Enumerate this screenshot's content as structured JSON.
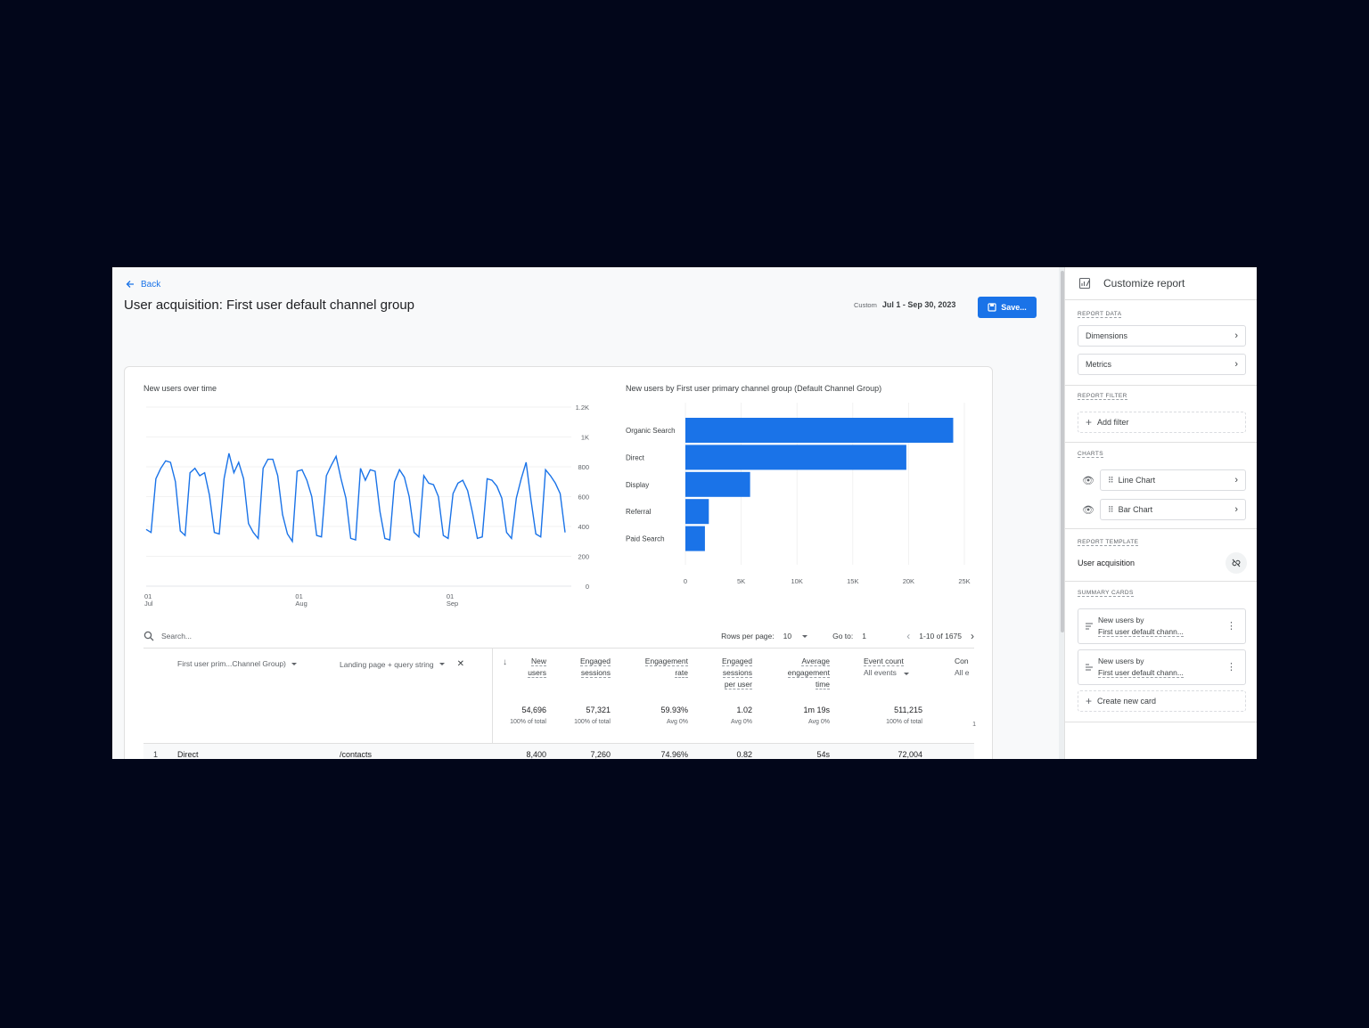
{
  "header": {
    "back_label": "Back",
    "title": "User acquisition: First user default channel group",
    "date_prefix": "Custom",
    "date_range": "Jul 1 - Sep 30, 2023",
    "save_label": "Save..."
  },
  "line_chart": {
    "title": "New users over time",
    "y_ticks": [
      "0",
      "200",
      "400",
      "600",
      "800",
      "1K",
      "1.2K"
    ],
    "x_ticks": [
      {
        "day": "01",
        "month": "Jul"
      },
      {
        "day": "01",
        "month": "Aug"
      },
      {
        "day": "01",
        "month": "Sep"
      }
    ]
  },
  "bar_chart": {
    "title": "New users by First user primary channel group (Default Channel Group)",
    "x_ticks": [
      "0",
      "5K",
      "10K",
      "15K",
      "20K",
      "25K"
    ]
  },
  "chart_data": [
    {
      "type": "line",
      "title": "New users over time",
      "x_start": "2023-07-01",
      "x_end": "2023-09-30",
      "ylim": [
        0,
        1200
      ],
      "y": [
        380,
        360,
        720,
        790,
        840,
        830,
        700,
        370,
        340,
        760,
        790,
        740,
        760,
        610,
        360,
        350,
        720,
        890,
        760,
        830,
        720,
        420,
        360,
        320,
        790,
        850,
        850,
        740,
        480,
        350,
        300,
        770,
        780,
        710,
        600,
        340,
        330,
        740,
        810,
        870,
        720,
        590,
        320,
        310,
        790,
        710,
        780,
        770,
        500,
        320,
        310,
        700,
        780,
        730,
        600,
        360,
        330,
        740,
        690,
        680,
        600,
        340,
        320,
        620,
        690,
        710,
        640,
        490,
        320,
        330,
        720,
        710,
        670,
        590,
        360,
        320,
        590,
        720,
        830,
        580,
        350,
        330,
        780,
        740,
        690,
        620,
        360
      ]
    },
    {
      "type": "bar",
      "title": "New users by First user primary channel group (Default Channel Group)",
      "categories": [
        "Organic Search",
        "Direct",
        "Display",
        "Referral",
        "Paid Search"
      ],
      "values": [
        24000,
        19800,
        5800,
        2100,
        1750
      ],
      "xlim": [
        0,
        25000
      ]
    }
  ],
  "table": {
    "search_placeholder": "Search...",
    "rows_per_page_label": "Rows per page:",
    "rows_per_page": "10",
    "goto_label": "Go to:",
    "goto_value": "1",
    "page_range": "1-10 of 1675",
    "dim1": "First user prim...Channel Group)",
    "dim2": "Landing page + query string",
    "metrics": [
      {
        "l1": "New",
        "l2": "users",
        "l3": "",
        "total": "54,696",
        "sub": "100% of total",
        "row1": "8,400"
      },
      {
        "l1": "Engaged",
        "l2": "sessions",
        "l3": "",
        "total": "57,321",
        "sub": "100% of total",
        "row1": "7,260"
      },
      {
        "l1": "Engagement",
        "l2": "rate",
        "l3": "",
        "total": "59.93%",
        "sub": "Avg 0%",
        "row1": "74.96%"
      },
      {
        "l1": "Engaged",
        "l2": "sessions",
        "l3": "per user",
        "total": "1.02",
        "sub": "Avg 0%",
        "row1": "0.82"
      },
      {
        "l1": "Average",
        "l2": "engagement",
        "l3": "time",
        "total": "1m 19s",
        "sub": "Avg 0%",
        "row1": "54s"
      },
      {
        "l1": "Event count",
        "l2": "All events",
        "l3": "",
        "total": "511,215",
        "sub": "100% of total",
        "row1": "72,004"
      }
    ],
    "cut_col": {
      "l1": "Con",
      "l2": "All e",
      "sub": "1"
    },
    "row1": {
      "num": "1",
      "dim1": "Direct",
      "dim2": "/contacts"
    }
  },
  "panel": {
    "title": "Customize report",
    "report_data_label": "REPORT DATA",
    "dimensions": "Dimensions",
    "metrics": "Metrics",
    "report_filter_label": "REPORT FILTER",
    "add_filter": "Add filter",
    "charts_label": "CHARTS",
    "line_chart": "Line Chart",
    "bar_chart": "Bar Chart",
    "report_template_label": "REPORT TEMPLATE",
    "template_name": "User acquisition",
    "summary_cards_label": "SUMMARY CARDS",
    "card1_l1": "New users by",
    "card1_l2": "First user default chann...",
    "card2_l1": "New users by",
    "card2_l2": "First user default chann...",
    "create_card": "Create new card"
  },
  "colors": {
    "accent": "#1a73e8",
    "bar": "#1a73e8",
    "line": "#1a73e8",
    "background": "#02061a"
  }
}
